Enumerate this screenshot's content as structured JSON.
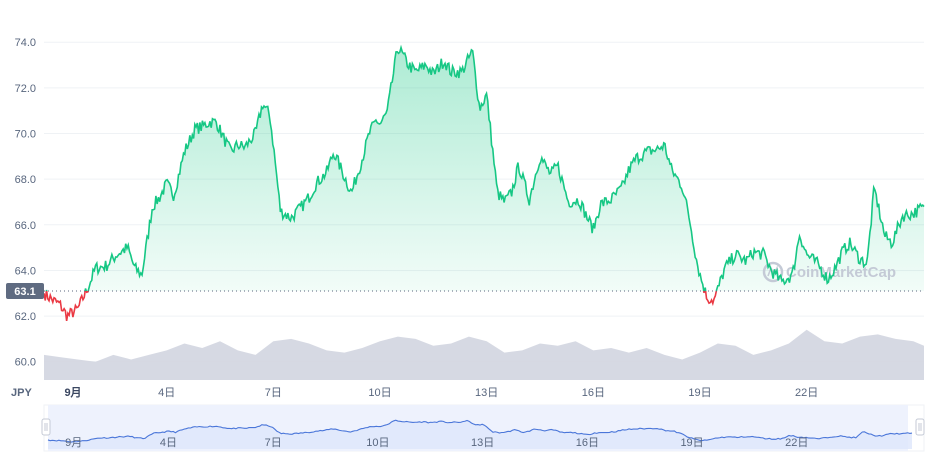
{
  "chart": {
    "currency_label": "JPY",
    "current_value_label": "63.1",
    "watermark": "CoinMarketCap",
    "x_tick_labels": [
      "9月",
      "4日",
      "7日",
      "10日",
      "13日",
      "16日",
      "19日",
      "22日"
    ],
    "navigator_tick_labels": [
      "9月",
      "4日",
      "7日",
      "10日",
      "13日",
      "16日",
      "19日",
      "22日"
    ]
  },
  "colors": {
    "up": "#16c784",
    "down": "#ea3943",
    "volume": "#d1d5e0",
    "navigator_line": "#4a76d9",
    "navigator_fill": "#dde6fb",
    "current_badge": "#5f6b81",
    "grid": "#eff2f5"
  },
  "chart_data": {
    "type": "line",
    "ylim": [
      59.2,
      75.5
    ],
    "y_ticks": [
      60.0,
      62.0,
      64.0,
      66.0,
      68.0,
      70.0,
      72.0,
      74.0
    ],
    "xlim": [
      0.55,
      25.3
    ],
    "x_ticks": [
      1,
      4,
      7,
      10,
      13,
      16,
      19,
      22
    ],
    "reference_value": 63.1,
    "series": [
      {
        "x": [
          0.55,
          0.8,
          1.0,
          1.2,
          1.5,
          1.8,
          2.0,
          2.3,
          2.6,
          2.9,
          3.1,
          3.3,
          3.6,
          3.8,
          4.0,
          4.2,
          4.5,
          4.8,
          5.0,
          5.2,
          5.4,
          5.6,
          5.8,
          6.0,
          6.2,
          6.5,
          6.7,
          6.9,
          7.0,
          7.2,
          7.5,
          7.8,
          8.0,
          8.2,
          8.5,
          8.7,
          9.0,
          9.2,
          9.5,
          9.7,
          9.9,
          10.0,
          10.2,
          10.5,
          10.8,
          11.0,
          11.3,
          11.5,
          11.8,
          12.0,
          12.3,
          12.6,
          12.8,
          13.0,
          13.3,
          13.5,
          13.7,
          13.9,
          14.2,
          14.5,
          14.8,
          15.0,
          15.3,
          15.6,
          15.8,
          16.0,
          16.2,
          16.5,
          16.8,
          17.0,
          17.2,
          17.5,
          17.8,
          18.0,
          18.2,
          18.5,
          18.7,
          18.9,
          19.0,
          19.2,
          19.4,
          19.7,
          20.0,
          20.3,
          20.5,
          20.8,
          21.0,
          21.3,
          21.6,
          21.8,
          22.0,
          22.3,
          22.6,
          22.8,
          23.0,
          23.2,
          23.5,
          23.7,
          23.9,
          24.2,
          24.4,
          24.7,
          25.0,
          25.3
        ],
        "y": [
          63.0,
          62.7,
          62.5,
          62.0,
          62.3,
          63.3,
          64.1,
          64.2,
          64.7,
          65.0,
          64.1,
          63.8,
          66.8,
          67.2,
          67.8,
          67.3,
          69.2,
          70.2,
          70.3,
          70.5,
          70.5,
          69.8,
          69.2,
          69.5,
          69.4,
          70.0,
          71.3,
          70.8,
          69.5,
          66.6,
          66.3,
          66.8,
          67.2,
          67.8,
          68.3,
          69.2,
          68.1,
          67.4,
          68.9,
          70.0,
          70.6,
          70.4,
          70.9,
          73.8,
          73.0,
          72.7,
          73.0,
          72.6,
          73.2,
          72.7,
          72.7,
          73.6,
          71.1,
          71.7,
          67.4,
          67.0,
          67.4,
          68.6,
          67.1,
          69.0,
          68.2,
          68.6,
          67.0,
          67.1,
          66.4,
          65.8,
          66.9,
          67.1,
          67.6,
          68.4,
          68.9,
          69.2,
          69.3,
          69.5,
          68.4,
          67.7,
          66.3,
          64.5,
          63.8,
          62.8,
          62.7,
          64.1,
          64.7,
          64.4,
          64.8,
          64.7,
          64.0,
          63.5,
          63.8,
          65.6,
          64.7,
          64.3,
          63.6,
          64.1,
          64.8,
          65.2,
          64.5,
          64.3,
          67.6,
          65.5,
          65.2,
          66.4,
          66.5,
          66.8
        ]
      }
    ],
    "volume": {
      "x": [
        0.55,
        1.0,
        1.5,
        2.0,
        2.5,
        3.0,
        3.5,
        4.0,
        4.5,
        5.0,
        5.5,
        6.0,
        6.5,
        7.0,
        7.5,
        8.0,
        8.5,
        9.0,
        9.5,
        10.0,
        10.5,
        11.0,
        11.5,
        12.0,
        12.5,
        13.0,
        13.5,
        14.0,
        14.5,
        15.0,
        15.5,
        16.0,
        16.5,
        17.0,
        17.5,
        18.0,
        18.5,
        19.0,
        19.5,
        20.0,
        20.5,
        21.0,
        21.5,
        22.0,
        22.5,
        23.0,
        23.5,
        24.0,
        24.5,
        25.0,
        25.3
      ],
      "y": [
        60.3,
        60.2,
        60.1,
        60.0,
        60.3,
        60.1,
        60.3,
        60.5,
        60.8,
        60.6,
        60.9,
        60.5,
        60.3,
        60.9,
        61.0,
        60.8,
        60.5,
        60.4,
        60.6,
        60.9,
        61.1,
        61.0,
        60.7,
        60.8,
        61.1,
        60.9,
        60.4,
        60.5,
        60.8,
        60.7,
        60.9,
        60.5,
        60.6,
        60.4,
        60.6,
        60.3,
        60.1,
        60.4,
        60.8,
        60.7,
        60.3,
        60.5,
        60.8,
        61.4,
        60.9,
        60.8,
        61.1,
        61.2,
        61.0,
        60.9,
        60.7
      ]
    }
  }
}
